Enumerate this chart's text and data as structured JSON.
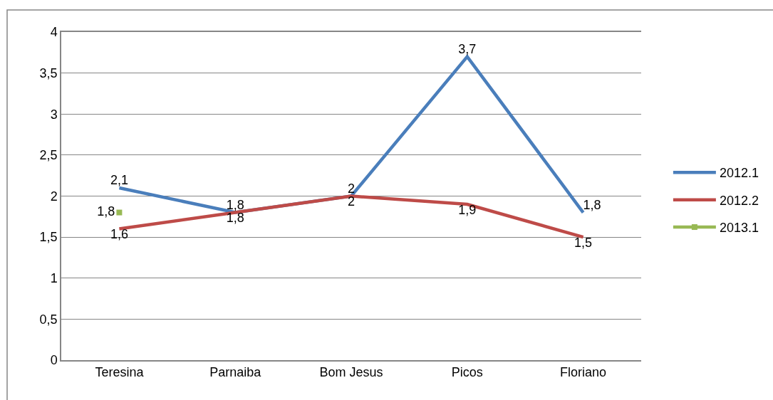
{
  "chart_data": {
    "type": "line",
    "categories": [
      "Teresina",
      "Parnaiba",
      "Bom Jesus",
      "Picos",
      "Floriano"
    ],
    "series": [
      {
        "name": "2012.1",
        "color": "#4a7ebb",
        "values": [
          2.1,
          1.8,
          2,
          3.7,
          1.8
        ],
        "value_labels": [
          "2,1",
          "1,8",
          "2",
          "3,7",
          "1,8"
        ]
      },
      {
        "name": "2012.2",
        "color": "#be4b48",
        "values": [
          1.6,
          1.8,
          2,
          1.9,
          1.5
        ],
        "value_labels": [
          "1,6",
          "1,8",
          "2",
          "1,9",
          "1,5"
        ]
      },
      {
        "name": "2013.1",
        "color": "#98b954",
        "values": [
          1.8,
          null,
          null,
          null,
          null
        ],
        "value_labels": [
          "1,8",
          null,
          null,
          null,
          null
        ],
        "marker": "square"
      }
    ],
    "ylim": [
      0,
      4
    ],
    "yticks": [
      0,
      {
        "value": 0.5,
        "label": "0,5"
      },
      1,
      {
        "value": 1.5,
        "label": "1,5"
      },
      2,
      {
        "value": 2.5,
        "label": "2,5"
      },
      3,
      {
        "value": 3.5,
        "label": "3,5"
      },
      4
    ],
    "grid": "y",
    "legend": "right",
    "marker": "none",
    "line_style": "solid"
  }
}
